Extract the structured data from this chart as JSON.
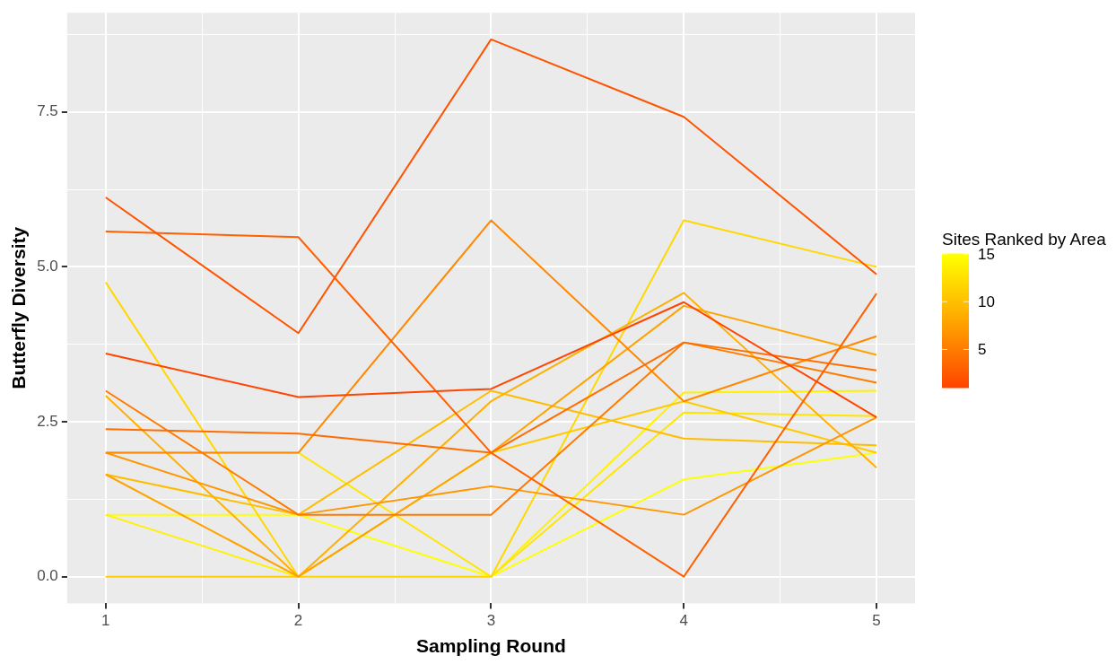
{
  "chart_data": {
    "type": "line",
    "xlabel": "Sampling Round",
    "ylabel": "Butterfly Diversity",
    "legend_title": "Sites Ranked by Area",
    "x": [
      1,
      2,
      3,
      4,
      5
    ],
    "xlim": [
      0.8,
      5.2
    ],
    "xticks": [
      1,
      {
        "value": 1.5,
        "label": null
      },
      2,
      {
        "value": 2.5,
        "label": null
      },
      3,
      {
        "value": 3.5,
        "label": null
      },
      4,
      {
        "value": 4.5,
        "label": null
      },
      5
    ],
    "ylim": [
      -0.43,
      9.1
    ],
    "yticks": [
      {
        "value": 0,
        "label": "0.0"
      },
      {
        "value": 1.25,
        "label": null
      },
      {
        "value": 2.5,
        "label": "2.5"
      },
      {
        "value": 3.75,
        "label": null
      },
      {
        "value": 5,
        "label": "5.0"
      },
      {
        "value": 6.25,
        "label": null
      },
      {
        "value": 7.5,
        "label": "7.5"
      },
      {
        "value": 8.75,
        "label": null
      }
    ],
    "grid": true,
    "clim": [
      1,
      15
    ],
    "cticks": [
      5,
      10,
      15
    ],
    "series": [
      {
        "color": "#ff4500",
        "values": [
          3.6,
          2.9,
          3.03,
          4.43,
          2.57
        ]
      },
      {
        "color": "#ff5300",
        "values": [
          6.12,
          3.93,
          8.67,
          7.42,
          4.88
        ]
      },
      {
        "color": "#ff6000",
        "values": [
          5.57,
          5.48,
          2.0,
          0,
          4.57
        ]
      },
      {
        "color": "#ff6d00",
        "values": [
          2.38,
          2.31,
          2.0,
          3.78,
          3.33
        ]
      },
      {
        "color": "#ff7b00",
        "values": [
          3.0,
          1.0,
          1.0,
          3.78,
          3.13
        ]
      },
      {
        "color": "#ff8800",
        "values": [
          2.0,
          2.0,
          5.75,
          2.83,
          3.88
        ]
      },
      {
        "color": "#ff9500",
        "values": [
          2.0,
          1.0,
          1.46,
          1.0,
          2.57
        ]
      },
      {
        "color": "#ffa300",
        "values": [
          1.65,
          0,
          2.0,
          4.37,
          3.58
        ]
      },
      {
        "color": "#ffb000",
        "values": [
          2.92,
          0,
          2.83,
          4.58,
          1.76
        ]
      },
      {
        "color": "#ffbd00",
        "values": [
          1.65,
          1.0,
          3.0,
          2.23,
          2.12
        ]
      },
      {
        "color": "#ffcb00",
        "values": [
          0,
          0,
          2.0,
          2.83,
          2.0
        ]
      },
      {
        "color": "#ffd800",
        "values": [
          4.75,
          0,
          0,
          5.75,
          5.0
        ]
      },
      {
        "color": "#ffe500",
        "values": [
          2.0,
          2.0,
          0,
          2.65,
          2.59
        ]
      },
      {
        "color": "#fff200",
        "values": [
          1.0,
          0,
          0,
          2.97,
          3.0
        ]
      },
      {
        "color": "#ffff00",
        "values": [
          1.0,
          1.0,
          0,
          1.57,
          2.0
        ]
      }
    ]
  }
}
